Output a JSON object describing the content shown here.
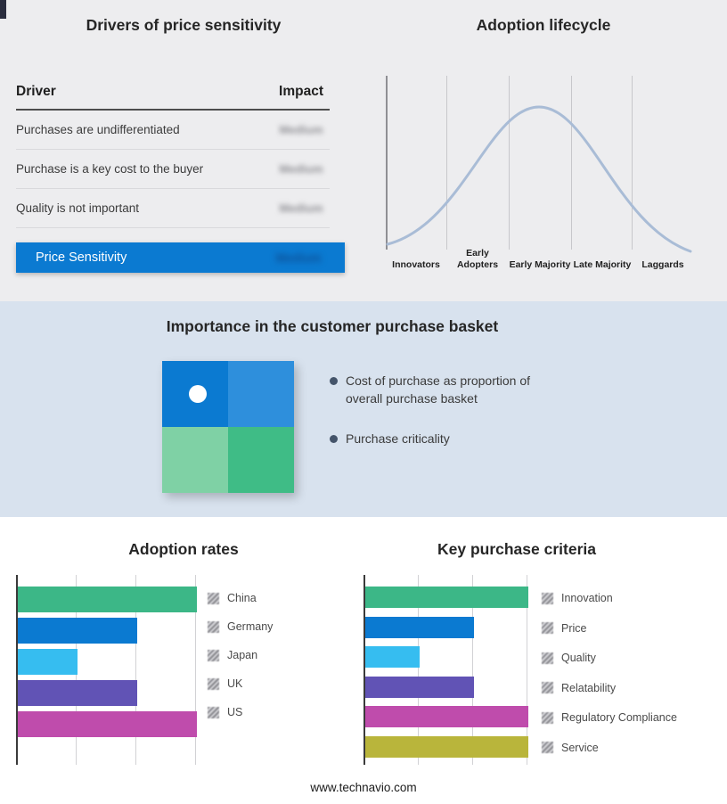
{
  "footer": "www.technavio.com",
  "colors": {
    "top_band_bg": "#ededef",
    "mid_band_bg": "#d8e2ee",
    "accent_blue": "#0b7ad1"
  },
  "chart_data": [
    {
      "type": "table",
      "title": "Drivers of price sensitivity",
      "columns": [
        "Driver",
        "Impact"
      ],
      "rows": [
        [
          "Purchases are undifferentiated",
          "Medium"
        ],
        [
          "Purchase is a key cost to the buyer",
          "Medium"
        ],
        [
          "Quality is not important",
          "Medium"
        ]
      ],
      "highlight_row": [
        "Price Sensitivity",
        "Medium"
      ],
      "highlight_color": "#0b7ad1",
      "note": "Impact values are blurred (redacted) in the source image; placeholder text is rendered with a blur filter."
    },
    {
      "type": "line",
      "title": "Adoption lifecycle",
      "categories": [
        "Innovators",
        "Early Adopters",
        "Early Majority",
        "Late Majority",
        "Laggards"
      ],
      "shape": "bell curve peaking over Early Majority",
      "line_color": "#a9bcd6",
      "grid": true
    },
    {
      "type": "bar",
      "orientation": "horizontal",
      "title": "Adoption rates",
      "categories": [
        "China",
        "Germany",
        "Japan",
        "UK",
        "US"
      ],
      "values": [
        3,
        2,
        1,
        2,
        3
      ],
      "colors": [
        "#3cb787",
        "#0b7ad1",
        "#36bdf0",
        "#6153b5",
        "#bf4cac"
      ],
      "xlim": [
        0,
        3
      ],
      "grid": true,
      "legend_position": "right",
      "note": "Value axis is unlabeled; values estimated in gridline units. Legend swatches are blurred in the source."
    },
    {
      "type": "bar",
      "orientation": "horizontal",
      "title": "Key purchase criteria",
      "categories": [
        "Innovation",
        "Price",
        "Quality",
        "Relatability",
        "Regulatory Compliance",
        "Service"
      ],
      "values": [
        3,
        2,
        1,
        2,
        3,
        3
      ],
      "colors": [
        "#3cb787",
        "#0b7ad1",
        "#36bdf0",
        "#6153b5",
        "#bf4cac",
        "#b9b53b"
      ],
      "xlim": [
        0,
        3
      ],
      "grid": true,
      "legend_position": "right",
      "note": "Value axis is unlabeled; values estimated in gridline units. Legend swatches are blurred in the source."
    }
  ],
  "importance_panel": {
    "title": "Importance in the customer purchase basket",
    "bullets": [
      "Cost of purchase as proportion of overall purchase basket",
      "Purchase criticality"
    ],
    "quadrant_colors": [
      "#0b7ad1",
      "#2e8fdc",
      "#7fd1a5",
      "#3fbc86"
    ]
  }
}
